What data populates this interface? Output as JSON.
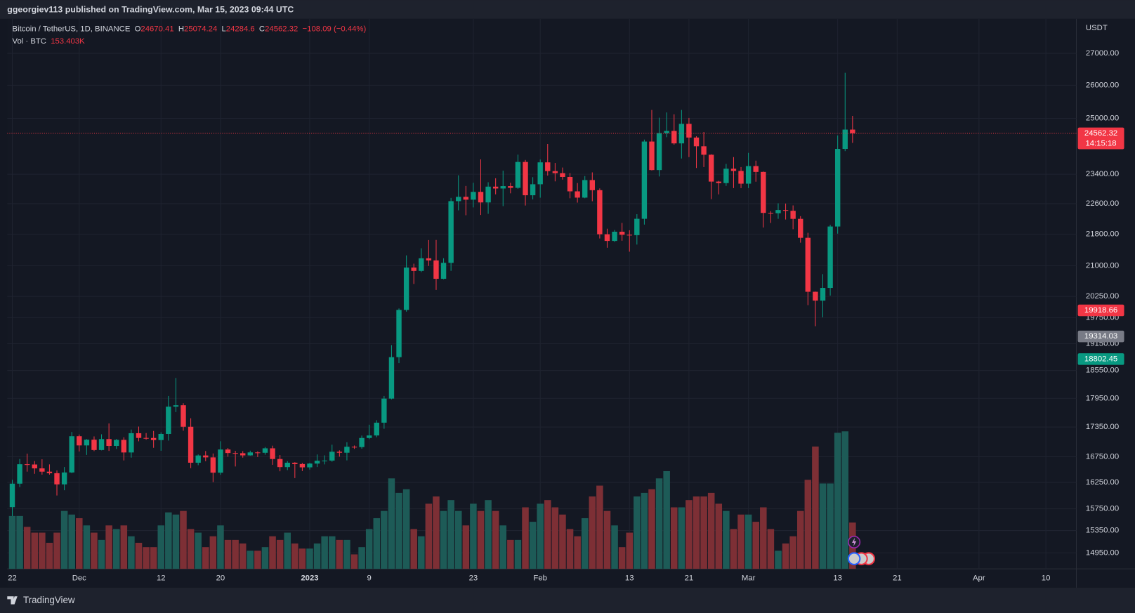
{
  "header": {
    "published": "ggeorgiev113 published on TradingView.com, Mar 15, 2023 09:44 UTC",
    "brand": "TradingView"
  },
  "chart_data": {
    "type": "candlestick",
    "symbol": "Bitcoin / TetherUS, 1D, BINANCE",
    "ohlc_labels": [
      "O",
      "H",
      "L",
      "C"
    ],
    "change": "−108.09 (−0.44%)",
    "volume_title": "Vol · BTC",
    "volume_value_label": "153.403K",
    "currency": "USDT",
    "log": true,
    "grid": true,
    "colors": {
      "up": "#089981",
      "down": "#f23645",
      "volume_up": "#1d5b57",
      "volume_down": "#7d2f35"
    },
    "xlim": [
      -0.68,
      143.1
    ],
    "xticks": [
      {
        "value": 0,
        "label": "22"
      },
      {
        "value": 9,
        "label": "Dec"
      },
      {
        "value": 20,
        "label": "12"
      },
      {
        "value": 28,
        "label": "20"
      },
      {
        "value": 40,
        "label": "2023"
      },
      {
        "value": 48,
        "label": "9"
      },
      {
        "value": 62,
        "label": "23"
      },
      {
        "value": 71,
        "label": "Feb"
      },
      {
        "value": 83,
        "label": "13"
      },
      {
        "value": 91,
        "label": "21"
      },
      {
        "value": 99,
        "label": "Mar"
      },
      {
        "value": 111,
        "label": "13"
      },
      {
        "value": 119,
        "label": "21"
      },
      {
        "value": 130,
        "label": "Apr"
      },
      {
        "value": 139,
        "label": "10"
      }
    ],
    "ylim": [
      14670,
      28125
    ],
    "yticks": [
      {
        "value": 27000,
        "label": "27000.00"
      },
      {
        "value": 26000,
        "label": "26000.00"
      },
      {
        "value": 25000,
        "label": "25000.00"
      },
      {
        "value": 23400,
        "label": "23400.00"
      },
      {
        "value": 22600,
        "label": "22600.00"
      },
      {
        "value": 21800,
        "label": "21800.00"
      },
      {
        "value": 21000,
        "label": "21000.00"
      },
      {
        "value": 20250,
        "label": "20250.00"
      },
      {
        "value": 19750,
        "label": "19750.00"
      },
      {
        "value": 19150,
        "label": "19150.00"
      },
      {
        "value": 18550,
        "label": "18550.00"
      },
      {
        "value": 17950,
        "label": "17950.00"
      },
      {
        "value": 17350,
        "label": "17350.00"
      },
      {
        "value": 16750,
        "label": "16750.00"
      },
      {
        "value": 16250,
        "label": "16250.00"
      },
      {
        "value": 15750,
        "label": "15750.00"
      },
      {
        "value": 15350,
        "label": "15350.00"
      },
      {
        "value": 14950,
        "label": "14950.00"
      }
    ],
    "vlim": [
      0,
      576000
    ],
    "countdown": "14:15:18",
    "price_lines": [
      {
        "value": 19918.66,
        "color": "#f23645"
      },
      {
        "value": 19314.03,
        "color": "#787b86"
      },
      {
        "value": 18802.45,
        "color": "#089981"
      }
    ],
    "candles": [
      [
        15781,
        16300,
        15616,
        16226
      ],
      [
        16226,
        16706,
        16160,
        16603
      ],
      [
        16603,
        16812,
        16458,
        16598
      ],
      [
        16598,
        16666,
        16416,
        16522
      ],
      [
        16522,
        16701,
        16400,
        16458
      ],
      [
        16458,
        16600,
        16400,
        16428
      ],
      [
        16428,
        16482,
        16000,
        16212
      ],
      [
        16212,
        16548,
        16100,
        16442
      ],
      [
        16442,
        17249,
        16428,
        17163
      ],
      [
        17163,
        17198,
        16855,
        16977
      ],
      [
        16977,
        17105,
        16787,
        17092
      ],
      [
        17092,
        17159,
        16863,
        16885
      ],
      [
        16885,
        17202,
        16878,
        17105
      ],
      [
        17105,
        17424,
        16867,
        16967
      ],
      [
        16967,
        17107,
        16906,
        17088
      ],
      [
        17088,
        17142,
        16678,
        16836
      ],
      [
        16836,
        17299,
        16733,
        17224
      ],
      [
        17224,
        17360,
        17060,
        17128
      ],
      [
        17128,
        17227,
        17092,
        17127
      ],
      [
        17127,
        17270,
        16929,
        17085
      ],
      [
        17085,
        17241,
        16870,
        17209
      ],
      [
        17209,
        18000,
        17074,
        17774
      ],
      [
        17774,
        18387,
        17660,
        17803
      ],
      [
        17803,
        17846,
        17275,
        17356
      ],
      [
        17356,
        17531,
        16527,
        16633
      ],
      [
        16633,
        16796,
        16584,
        16776
      ],
      [
        16776,
        16864,
        16663,
        16738
      ],
      [
        16738,
        16816,
        16256,
        16438
      ],
      [
        16438,
        17061,
        16397,
        16895
      ],
      [
        16895,
        16925,
        16751,
        16825
      ],
      [
        16825,
        16868,
        16559,
        16821
      ],
      [
        16821,
        16862,
        16733,
        16778
      ],
      [
        16778,
        16871,
        16772,
        16837
      ],
      [
        16837,
        16859,
        16745,
        16830
      ],
      [
        16830,
        16944,
        16791,
        16919
      ],
      [
        16919,
        16972,
        16592,
        16706
      ],
      [
        16706,
        16785,
        16465,
        16547
      ],
      [
        16547,
        16664,
        16488,
        16633
      ],
      [
        16633,
        16644,
        16333,
        16607
      ],
      [
        16607,
        16629,
        16470,
        16542
      ],
      [
        16542,
        16631,
        16499,
        16616
      ],
      [
        16616,
        16796,
        16548,
        16672
      ],
      [
        16672,
        16778,
        16600,
        16675
      ],
      [
        16675,
        16991,
        16652,
        16850
      ],
      [
        16850,
        16879,
        16753,
        16831
      ],
      [
        16831,
        17041,
        16679,
        16950
      ],
      [
        16950,
        16975,
        16908,
        16943
      ],
      [
        16943,
        17176,
        16911,
        17127
      ],
      [
        17127,
        17398,
        17104,
        17178
      ],
      [
        17178,
        17491,
        17141,
        17440
      ],
      [
        17440,
        18000,
        17315,
        17944
      ],
      [
        17944,
        19117,
        17928,
        18846
      ],
      [
        18846,
        19964,
        18714,
        19930
      ],
      [
        19930,
        21258,
        19889,
        20954
      ],
      [
        20954,
        21050,
        20551,
        20871
      ],
      [
        20871,
        21438,
        20841,
        21185
      ],
      [
        21185,
        21647,
        20995,
        21132
      ],
      [
        21132,
        21650,
        20407,
        20677
      ],
      [
        20677,
        21186,
        20665,
        21071
      ],
      [
        21071,
        22755,
        20873,
        22667
      ],
      [
        22667,
        23371,
        22422,
        22783
      ],
      [
        22783,
        23078,
        22292,
        22707
      ],
      [
        22707,
        23165,
        22500,
        22917
      ],
      [
        22917,
        23816,
        22300,
        22633
      ],
      [
        22633,
        23180,
        22330,
        23060
      ],
      [
        23060,
        23290,
        22850,
        23009
      ],
      [
        23009,
        23500,
        22534,
        23074
      ],
      [
        23074,
        23165,
        22878,
        23027
      ],
      [
        23027,
        23950,
        23000,
        23743
      ],
      [
        23743,
        23800,
        22550,
        22826
      ],
      [
        22826,
        23320,
        22714,
        23125
      ],
      [
        23125,
        23812,
        22760,
        23732
      ],
      [
        23732,
        24255,
        23363,
        23488
      ],
      [
        23488,
        23715,
        23204,
        23431
      ],
      [
        23431,
        23587,
        23253,
        23326
      ],
      [
        23326,
        23433,
        22745,
        22932
      ],
      [
        22932,
        23158,
        22628,
        22762
      ],
      [
        22762,
        23350,
        22745,
        23240
      ],
      [
        23240,
        23452,
        22665,
        22963
      ],
      [
        22963,
        23011,
        21688,
        21796
      ],
      [
        21796,
        21940,
        21451,
        21625
      ],
      [
        21625,
        21906,
        21599,
        21862
      ],
      [
        21862,
        22090,
        21630,
        21783
      ],
      [
        21783,
        21900,
        21351,
        21773
      ],
      [
        21773,
        22320,
        21532,
        22199
      ],
      [
        22199,
        24380,
        22047,
        24324
      ],
      [
        24324,
        25250,
        23505,
        23517
      ],
      [
        23517,
        25021,
        23339,
        24569
      ],
      [
        24569,
        25176,
        24450,
        24631
      ],
      [
        24631,
        25121,
        24234,
        24271
      ],
      [
        24271,
        25250,
        23840,
        24838
      ],
      [
        24838,
        25014,
        23880,
        24439
      ],
      [
        24439,
        24476,
        23574,
        24188
      ],
      [
        24188,
        24600,
        23600,
        23947
      ],
      [
        23947,
        23960,
        22722,
        23198
      ],
      [
        23198,
        23219,
        22850,
        23157
      ],
      [
        23157,
        23689,
        23080,
        23554
      ],
      [
        23554,
        23880,
        23020,
        23492
      ],
      [
        23492,
        23600,
        23020,
        23141
      ],
      [
        23141,
        24000,
        23020,
        23628
      ],
      [
        23628,
        23780,
        23195,
        23465
      ],
      [
        23465,
        23476,
        21971,
        22354
      ],
      [
        22354,
        22400,
        22090,
        22346
      ],
      [
        22346,
        22610,
        22198,
        22430
      ],
      [
        22430,
        22603,
        22180,
        22410
      ],
      [
        22410,
        22553,
        21927,
        22197
      ],
      [
        22197,
        22268,
        21580,
        21705
      ],
      [
        21705,
        21834,
        20042,
        20362
      ],
      [
        20362,
        20367,
        19549,
        20150
      ],
      [
        20150,
        20792,
        19756,
        20455
      ],
      [
        20455,
        22041,
        20271,
        21997
      ],
      [
        21997,
        24500,
        21813,
        24113
      ],
      [
        24113,
        26386,
        24050,
        24670.41
      ],
      [
        24670.41,
        25074.24,
        24284.6,
        24562.32
      ]
    ],
    "volume": [
      175200,
      175200,
      139200,
      120000,
      120000,
      86400,
      120000,
      192000,
      180000,
      168000,
      144000,
      120000,
      96000,
      144000,
      132000,
      144000,
      108000,
      86400,
      72000,
      72000,
      144000,
      187200,
      180000,
      192000,
      132000,
      120000,
      72000,
      108000,
      144000,
      96000,
      96000,
      84000,
      60000,
      60000,
      72000,
      108000,
      96000,
      120000,
      84000,
      67200,
      67200,
      84000,
      108000,
      108000,
      96000,
      96000,
      48000,
      72000,
      132000,
      168000,
      192000,
      300000,
      252000,
      264000,
      132000,
      108000,
      216000,
      240000,
      192000,
      228000,
      192000,
      144000,
      216000,
      192000,
      228000,
      192000,
      144000,
      96000,
      96000,
      204000,
      156000,
      216000,
      228000,
      204000,
      180000,
      132000,
      108000,
      168000,
      240000,
      276000,
      192000,
      144000,
      72000,
      120000,
      240000,
      252000,
      264000,
      300000,
      324000,
      204000,
      204000,
      228000,
      240000,
      240000,
      252000,
      216000,
      192000,
      132000,
      180000,
      180000,
      156000,
      204000,
      132000,
      60000,
      84000,
      108000,
      192000,
      295200,
      405600,
      283200,
      283200,
      451200,
      456000,
      153403
    ]
  }
}
